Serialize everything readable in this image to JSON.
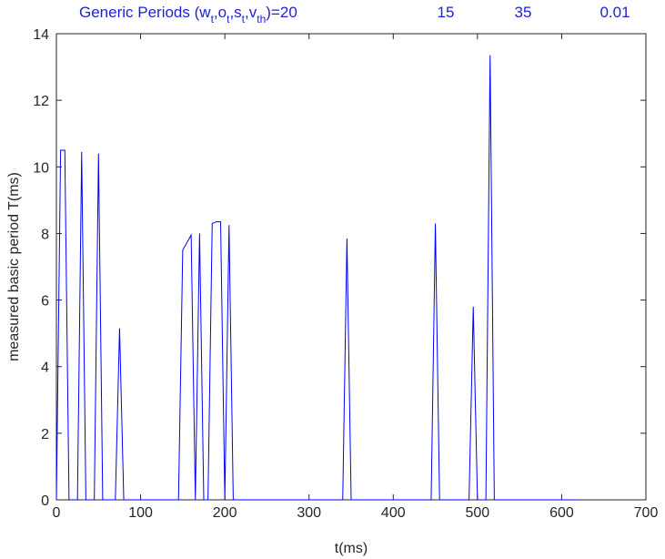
{
  "chart_data": {
    "type": "line",
    "title_segments": [
      {
        "text": "Generic Periods (w",
        "sub": false
      },
      {
        "text": "t",
        "sub": true
      },
      {
        "text": ",o",
        "sub": false
      },
      {
        "text": "t",
        "sub": true
      },
      {
        "text": ",s",
        "sub": false
      },
      {
        "text": "t",
        "sub": true
      },
      {
        "text": ",v",
        "sub": false
      },
      {
        "text": "th",
        "sub": true
      },
      {
        "text": ")=",
        "sub": false
      }
    ],
    "title_values": [
      "20",
      "15",
      "35",
      "0.01"
    ],
    "x_label": "t(ms)",
    "y_label": "measured basic period T(ms)",
    "xlim": [
      0,
      700
    ],
    "xticks": [
      0,
      100,
      200,
      300,
      400,
      500,
      600,
      700
    ],
    "ylim": [
      0,
      14
    ],
    "yticks": [
      0,
      2,
      4,
      6,
      8,
      10,
      12,
      14
    ],
    "series": [
      {
        "color": "#0000ff",
        "x": [
          0,
          5,
          10,
          15,
          25,
          30,
          35,
          45,
          50,
          55,
          70,
          75,
          80,
          145,
          150,
          160,
          165,
          170,
          175,
          180,
          185,
          190,
          195,
          200,
          205,
          210,
          340,
          345,
          350,
          445,
          450,
          455,
          490,
          495,
          500,
          510,
          515,
          520,
          620
        ],
        "values": [
          0,
          10.5,
          10.5,
          0,
          0,
          10.45,
          0,
          0,
          10.4,
          0,
          0,
          5.15,
          0,
          0,
          7.5,
          7.95,
          0,
          8.0,
          0,
          0,
          8.3,
          8.35,
          8.35,
          0,
          8.25,
          0,
          0,
          7.85,
          0,
          0,
          8.3,
          0,
          0,
          5.8,
          0,
          0,
          13.35,
          0,
          0
        ]
      }
    ]
  }
}
